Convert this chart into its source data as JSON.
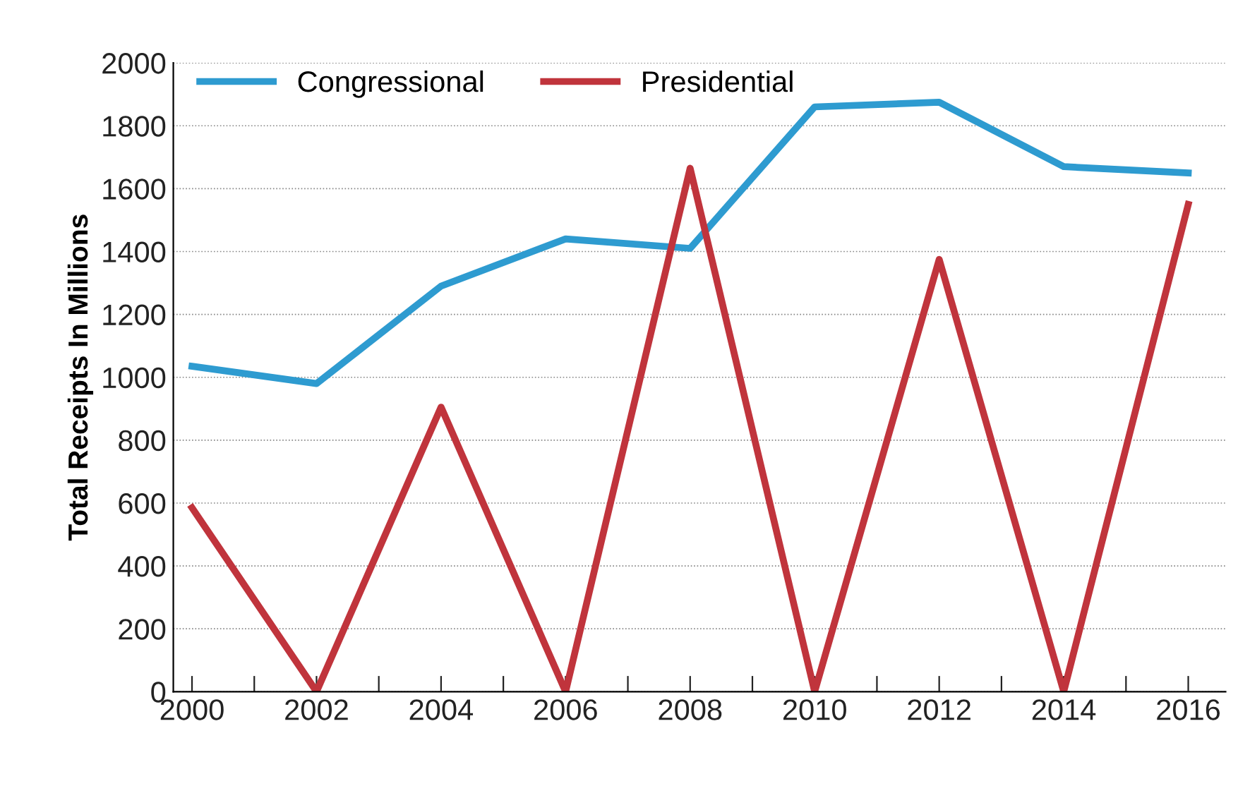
{
  "chart_data": {
    "type": "line",
    "ylabel": "Total Receipts In Millions",
    "x": [
      2000,
      2002,
      2004,
      2006,
      2008,
      2010,
      2012,
      2014,
      2016
    ],
    "series": [
      {
        "name": "Congressional",
        "color": "#2e9bd0",
        "values": [
          1035,
          980,
          1290,
          1440,
          1410,
          1860,
          1875,
          1670,
          1650
        ]
      },
      {
        "name": "Presidential",
        "color": "#c0343c",
        "values": [
          585,
          0,
          905,
          0,
          1665,
          0,
          1375,
          0,
          1550
        ]
      }
    ],
    "xlim": [
      1999.7,
      2016.6
    ],
    "xticks": [
      2000,
      {
        "value": 2001,
        "label": null
      },
      2002,
      {
        "value": 2003,
        "label": null
      },
      2004,
      {
        "value": 2005,
        "label": null
      },
      2006,
      {
        "value": 2007,
        "label": null
      },
      2008,
      {
        "value": 2009,
        "label": null
      },
      2010,
      {
        "value": 2011,
        "label": null
      },
      2012,
      {
        "value": 2013,
        "label": null
      },
      2014,
      {
        "value": 2015,
        "label": null
      },
      2016
    ],
    "ylim": [
      0,
      2000
    ],
    "yticks": [
      0,
      200,
      400,
      600,
      800,
      1000,
      1200,
      1400,
      1600,
      1800,
      2000
    ],
    "grid": "y",
    "legend": "top left",
    "marker": "none",
    "line_style": "solid"
  }
}
